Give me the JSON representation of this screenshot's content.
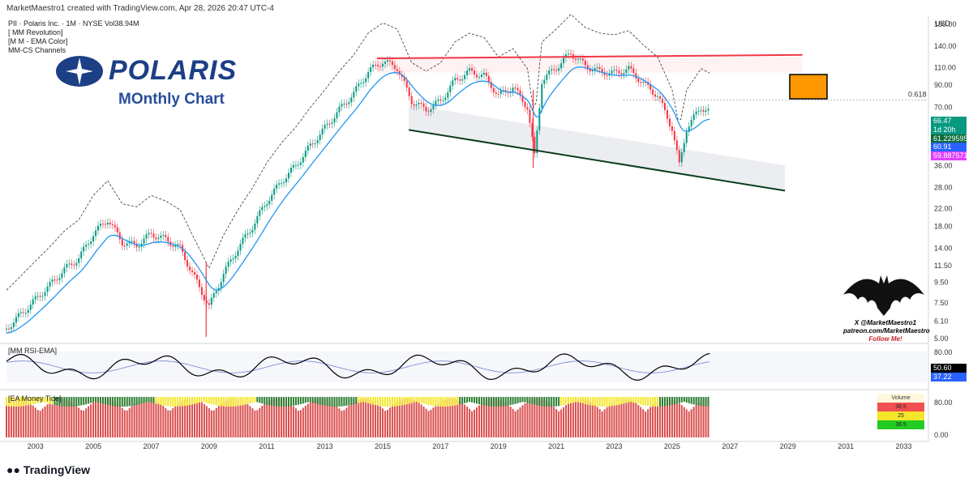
{
  "header": {
    "attribution": "MarketMaestro1 created with TradingView.com, Apr 28, 2026 20:47 UTC-4",
    "symbol_line": "PII · Polaris Inc. · 1M · NYSE  Vol38.94M",
    "indicators": [
      "[ MM Revolution]",
      "[M M - EMA Color]",
      "MM-CS Channels"
    ]
  },
  "logo": {
    "text": "POLARIS",
    "subtitle": "MOnthly Chart"
  },
  "price_axis": {
    "currency": "USD",
    "ticks": [
      "180.00",
      "140.00",
      "110.00",
      "90.00",
      "70.00",
      "61.229595",
      "36.00",
      "28.00",
      "22.00",
      "18.00",
      "14.00",
      "11.50",
      "9.50",
      "7.50",
      "6.10",
      "5.00"
    ],
    "fib_label": "0.618",
    "tags": [
      {
        "text": "66.47",
        "color": "#089981"
      },
      {
        "text": "1d 20h",
        "color": "#089981"
      },
      {
        "text": "61.229595",
        "color": "#0b6b3a"
      },
      {
        "text": "60.91",
        "color": "#2962ff"
      },
      {
        "text": "59.887571",
        "color": "#e040fb"
      }
    ]
  },
  "time_axis": [
    "2003",
    "2005",
    "2007",
    "2009",
    "2011",
    "2013",
    "2015",
    "2017",
    "2019",
    "2021",
    "2023",
    "2025",
    "2027",
    "2029",
    "2031",
    "2033"
  ],
  "rsi_pane": {
    "title": "[MM RSI-EMA]",
    "ticks": [
      "80.00"
    ],
    "value_tags": [
      {
        "text": "50.60",
        "color": "#000000"
      },
      {
        "text": "37.22",
        "color": "#2962ff"
      }
    ]
  },
  "money_pane": {
    "title": "[EA Money Tide]",
    "ticks": [
      "80.00",
      "0.00"
    ]
  },
  "volume_box": {
    "title": "Volume",
    "rows": [
      {
        "text": "38.5",
        "color": "#f05050"
      },
      {
        "text": "25",
        "color": "#f5e62a"
      },
      {
        "text": "36.5",
        "color": "#22cc22"
      }
    ]
  },
  "watermark": {
    "line1": "X @MarketMaestro1",
    "line2": "patreon.com/MarketMaestro",
    "line3": "Follow Me!"
  },
  "footer": {
    "brand": "TradingView"
  },
  "colors": {
    "up": "#089981",
    "down": "#f23645",
    "ema": "#2196f3",
    "resistance": "#f23645",
    "support": "#0b3d1c",
    "box": "#ff9800"
  },
  "chart_data": {
    "type": "line",
    "title": "PII · Polaris Inc. · 1M · NYSE",
    "scale": "log",
    "ylim": [
      5,
      180
    ],
    "x": [
      2002.0,
      2002.5,
      2003.0,
      2003.5,
      2004.0,
      2004.5,
      2005.0,
      2005.5,
      2006.0,
      2006.5,
      2007.0,
      2007.5,
      2008.0,
      2008.5,
      2009.0,
      2009.5,
      2010.0,
      2010.5,
      2011.0,
      2011.5,
      2012.0,
      2012.5,
      2013.0,
      2013.5,
      2014.0,
      2014.5,
      2015.0,
      2015.5,
      2016.0,
      2016.5,
      2017.0,
      2017.5,
      2018.0,
      2018.5,
      2019.0,
      2019.5,
      2020.0,
      2020.25,
      2020.5,
      2021.0,
      2021.5,
      2022.0,
      2022.5,
      2023.0,
      2023.5,
      2024.0,
      2024.5,
      2025.0,
      2025.25,
      2025.5,
      2026.0,
      2026.3
    ],
    "series": [
      {
        "values": [
          5.6,
          6.6,
          7.8,
          9.2,
          11.0,
          12.5,
          16.5,
          19.5,
          15.0,
          14.5,
          16.5,
          15.5,
          14.0,
          10.0,
          7.2,
          10.5,
          14.0,
          18.0,
          24.0,
          30.0,
          36.0,
          45.0,
          55.0,
          68.0,
          82.0,
          105.0,
          118.0,
          110.0,
          75.0,
          68.0,
          75.0,
          95.0,
          105.0,
          100.0,
          80.0,
          88.0,
          70.0,
          40.0,
          95.0,
          110.0,
          130.0,
          112.0,
          105.0,
          103.0,
          108.0,
          92.0,
          80.0,
          55.0,
          36.0,
          55.0,
          70.0,
          66.47
        ]
      }
    ],
    "annotations": {
      "resistance_line": {
        "x": [
          2014.8,
          2029.5
        ],
        "y": [
          122,
          127
        ]
      },
      "support_line": {
        "x": [
          2015.9,
          2028.9
        ],
        "y": [
          54,
          27
        ]
      },
      "fib_0_618": 76,
      "last_close": 66.47
    }
  }
}
